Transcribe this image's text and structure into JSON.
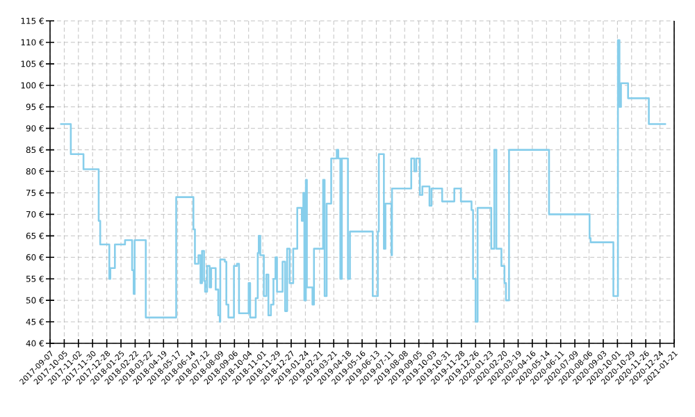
{
  "chart_data": {
    "type": "step",
    "color": "#87ceeb",
    "grid": true,
    "xlim": [
      "2017-09-07",
      "2021-01-21"
    ],
    "xticks": [
      "2017-09-07",
      "2017-10-05",
      "2017-11-02",
      "2017-11-30",
      "2017-12-28",
      "2018-01-25",
      "2018-02-22",
      "2018-03-22",
      "2018-04-19",
      "2018-05-17",
      "2018-06-14",
      "2018-07-12",
      "2018-08-09",
      "2018-09-06",
      "2018-10-04",
      "2018-11-01",
      "2018-11-29",
      "2018-12-27",
      "2019-01-24",
      "2019-02-21",
      "2019-03-21",
      "2019-04-18",
      "2019-05-16",
      "2019-06-13",
      "2019-07-11",
      "2019-08-08",
      "2019-09-05",
      "2019-10-03",
      "2019-10-31",
      "2019-11-28",
      "2019-12-26",
      "2020-01-23",
      "2020-02-20",
      "2020-03-19",
      "2020-04-16",
      "2020-05-14",
      "2020-06-11",
      "2020-07-09",
      "2020-08-06",
      "2020-09-03",
      "2020-10-01",
      "2020-10-29",
      "2020-11-26",
      "2020-12-24",
      "2021-01-21"
    ],
    "ylim": [
      40,
      115
    ],
    "yticks": [
      {
        "value": 40,
        "label": "40 €"
      },
      {
        "value": 45,
        "label": "45 €"
      },
      {
        "value": 50,
        "label": "50 €"
      },
      {
        "value": 55,
        "label": "55 €"
      },
      {
        "value": 60,
        "label": "60 €"
      },
      {
        "value": 65,
        "label": "65 €"
      },
      {
        "value": 70,
        "label": "70 €"
      },
      {
        "value": 75,
        "label": "75 €"
      },
      {
        "value": 80,
        "label": "80 €"
      },
      {
        "value": 85,
        "label": "85 €"
      },
      {
        "value": 90,
        "label": "90 €"
      },
      {
        "value": 95,
        "label": "95 €"
      },
      {
        "value": 100,
        "label": "100 €"
      },
      {
        "value": 105,
        "label": "105 €"
      },
      {
        "value": 110,
        "label": "110 €"
      },
      {
        "value": 115,
        "label": "115 €"
      }
    ],
    "x": [
      "2017-09-27",
      "2017-10-18",
      "2017-11-12",
      "2017-12-12",
      "2017-12-15",
      "2018-01-02",
      "2018-01-04",
      "2018-01-13",
      "2018-02-02",
      "2018-02-16",
      "2018-02-19",
      "2018-02-21",
      "2018-03-15",
      "2018-05-14",
      "2018-06-17",
      "2018-06-20",
      "2018-06-27",
      "2018-07-01",
      "2018-07-04",
      "2018-07-08",
      "2018-07-10",
      "2018-07-14",
      "2018-07-19",
      "2018-07-22",
      "2018-07-31",
      "2018-08-05",
      "2018-08-08",
      "2018-08-09",
      "2018-08-18",
      "2018-08-21",
      "2018-08-25",
      "2018-09-05",
      "2018-09-11",
      "2018-09-15",
      "2018-10-04",
      "2018-10-07",
      "2018-10-18",
      "2018-10-22",
      "2018-10-24",
      "2018-10-27",
      "2018-11-03",
      "2018-11-08",
      "2018-11-12",
      "2018-11-17",
      "2018-11-22",
      "2018-11-26",
      "2018-11-29",
      "2018-12-10",
      "2018-12-15",
      "2018-12-19",
      "2018-12-24",
      "2018-12-31",
      "2019-01-08",
      "2019-01-17",
      "2019-01-20",
      "2019-01-22",
      "2019-01-25",
      "2019-01-27",
      "2019-02-07",
      "2019-02-10",
      "2019-02-28",
      "2019-03-03",
      "2019-03-07",
      "2019-03-16",
      "2019-03-27",
      "2019-03-30",
      "2019-04-03",
      "2019-04-06",
      "2019-04-18",
      "2019-04-22",
      "2019-06-06",
      "2019-06-16",
      "2019-06-18",
      "2019-06-28",
      "2019-07-01",
      "2019-07-13",
      "2019-07-14",
      "2019-08-21",
      "2019-08-27",
      "2019-08-31",
      "2019-09-07",
      "2019-09-12",
      "2019-09-26",
      "2019-09-30",
      "2019-10-21",
      "2019-11-14",
      "2019-11-27",
      "2019-12-18",
      "2019-12-21",
      "2019-12-26",
      "2019-12-30",
      "2020-01-26",
      "2020-02-01",
      "2020-02-05",
      "2020-02-15",
      "2020-02-21",
      "2020-02-24",
      "2020-03-01",
      "2020-05-19",
      "2020-08-07",
      "2020-08-09",
      "2020-09-23",
      "2020-10-02",
      "2020-10-05",
      "2020-10-08",
      "2020-10-22",
      "2020-12-02",
      "2021-01-05"
    ],
    "values": [
      91,
      84,
      80.5,
      68.5,
      63,
      55,
      57.5,
      63,
      64,
      57,
      51.5,
      64,
      46,
      74,
      66.5,
      58.5,
      60.5,
      54,
      61.5,
      54.5,
      52,
      58,
      53,
      57.5,
      52.5,
      46.5,
      45,
      59.5,
      59,
      49,
      46,
      58,
      58.5,
      47,
      54,
      46,
      50.5,
      61,
      65,
      60.5,
      51,
      56,
      46.5,
      49,
      55,
      60,
      52,
      59,
      47.5,
      62,
      54,
      62,
      71.5,
      68.5,
      75,
      50,
      78,
      53,
      49,
      62,
      78,
      51,
      72.5,
      83,
      85,
      83,
      55,
      83,
      55,
      66,
      51,
      66,
      84,
      62,
      72.5,
      60.5,
      76,
      83,
      80,
      83,
      74.5,
      76.5,
      72,
      76,
      73,
      76,
      73,
      71,
      55,
      45,
      71.5,
      62,
      85,
      62,
      58,
      54,
      50,
      85,
      70,
      64.5,
      63.5,
      51,
      110.5,
      95,
      100.5,
      97,
      91,
      91
    ]
  }
}
